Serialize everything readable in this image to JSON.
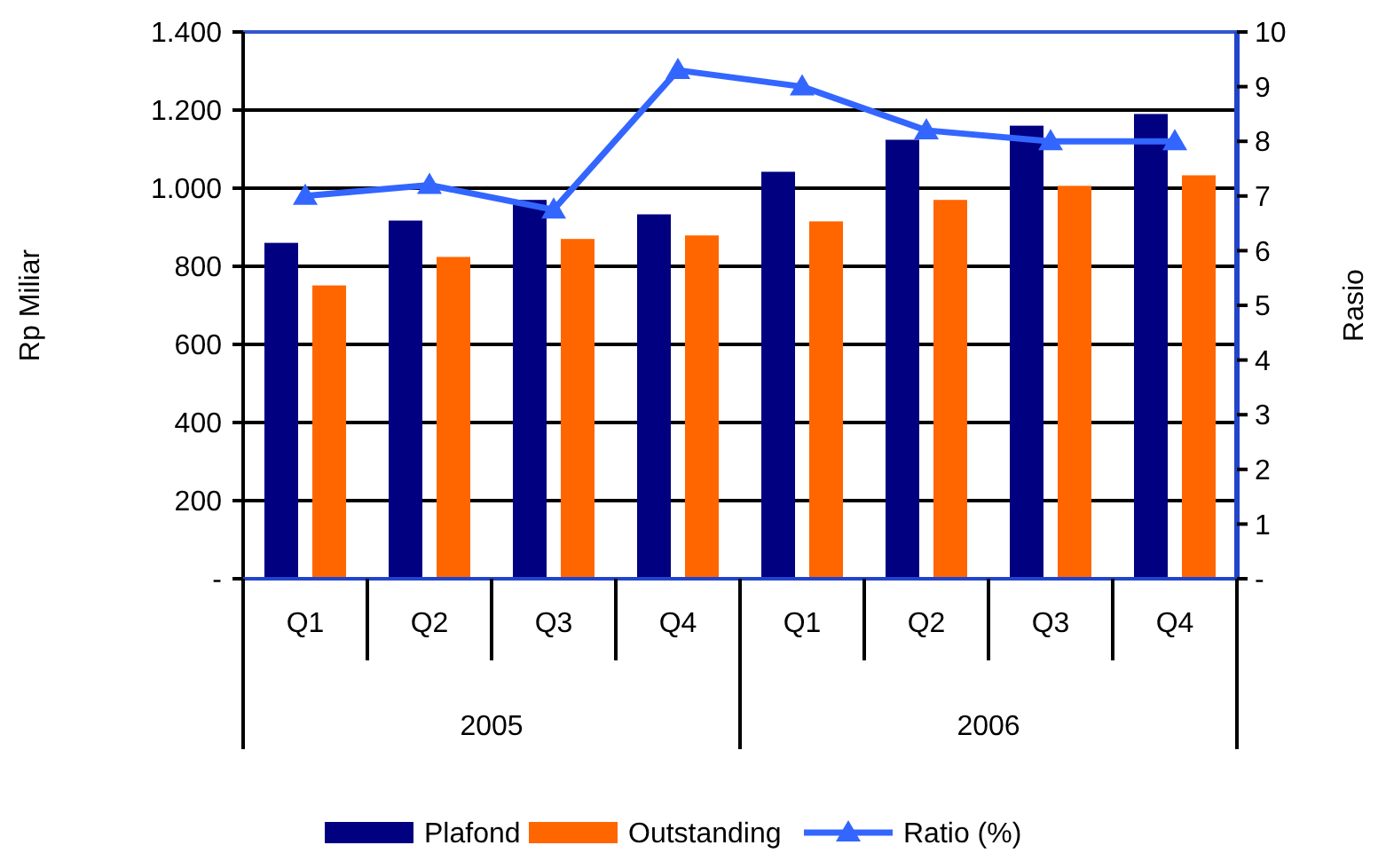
{
  "chart_data": {
    "type": "bar",
    "categories": [
      "Q1",
      "Q2",
      "Q3",
      "Q4",
      "Q1",
      "Q2",
      "Q3",
      "Q4"
    ],
    "annotations": [
      "2005",
      "2006"
    ],
    "ylabel": "Rp Miliar",
    "y2label": "Rasio",
    "ylim": [
      0,
      1400
    ],
    "yticks": [
      {
        "value": 0,
        "label": "-"
      },
      {
        "value": 200,
        "label": "200"
      },
      {
        "value": 400,
        "label": "400"
      },
      {
        "value": 600,
        "label": "600"
      },
      {
        "value": 800,
        "label": "800"
      },
      {
        "value": 1000,
        "label": "1.000"
      },
      {
        "value": 1200,
        "label": "1.200"
      },
      {
        "value": 1400,
        "label": "1.400"
      }
    ],
    "y2lim": [
      0,
      10
    ],
    "y2ticks": [
      {
        "value": 0,
        "label": "-"
      },
      1,
      2,
      3,
      4,
      5,
      6,
      7,
      8,
      9,
      10
    ],
    "grid": "y",
    "legend": "bottom",
    "series": [
      {
        "name": "Plafond",
        "color": "#000080",
        "values": [
          860,
          917,
          970,
          933,
          1042,
          1124,
          1160,
          1190
        ]
      },
      {
        "name": "Outstanding",
        "color": "#ff6600",
        "values": [
          751,
          824,
          870,
          879,
          915,
          970,
          1006,
          1033
        ]
      },
      {
        "name": "Ratio (%)",
        "type": "line",
        "axis": "y2",
        "color": "#3366ff",
        "marker": "triangle",
        "values": [
          7.0,
          7.2,
          6.75,
          9.3,
          9.0,
          8.2,
          8.0,
          8.0
        ]
      }
    ]
  }
}
